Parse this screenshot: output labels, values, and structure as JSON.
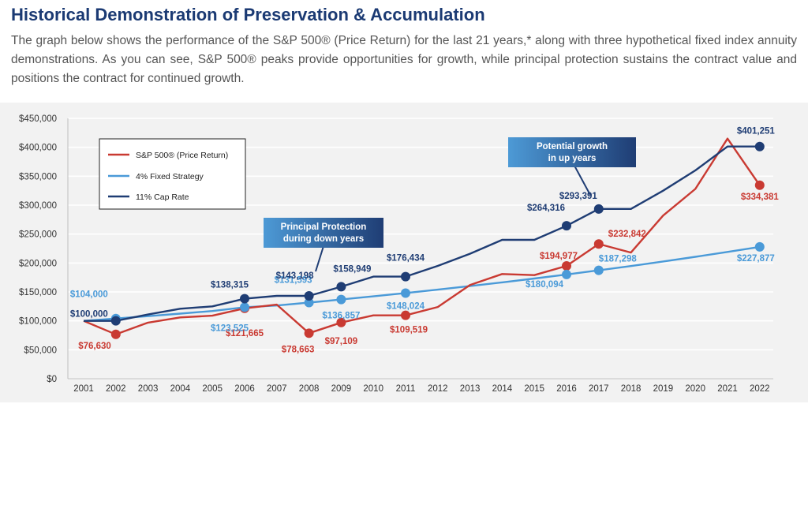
{
  "title": "Historical Demonstration of Preservation & Accumulation",
  "intro": "The graph below shows the performance of the S&P 500® (Price Return) for the last 21 years,* along with three hypothetical fixed index annuity demonstrations. As you can see, S&P 500® peaks provide opportunities for growth, while principal protection sustains the contract value and positions the contract for continued growth.",
  "colors": {
    "sp500": "#c93a32",
    "fixed": "#4a9ad8",
    "cap": "#1f3d74",
    "background": "#f2f2f2"
  },
  "chart_data": {
    "type": "line",
    "x": [
      2001,
      2002,
      2003,
      2004,
      2005,
      2006,
      2007,
      2008,
      2009,
      2010,
      2011,
      2012,
      2013,
      2014,
      2015,
      2016,
      2017,
      2018,
      2019,
      2020,
      2021,
      2022
    ],
    "ylim": [
      0,
      450000
    ],
    "yticks": [
      "$0",
      "$50,000",
      "$100,000",
      "$150,000",
      "$200,000",
      "$250,000",
      "$300,000",
      "$350,000",
      "$400,000",
      "$450,000"
    ],
    "grid": true,
    "legend_position": "top-left",
    "series": [
      {
        "name": "S&P 500® (Price Return)",
        "color": "#c93a32",
        "values": [
          100000,
          76630,
          97000,
          106000,
          109000,
          121665,
          128000,
          78663,
          97109,
          109519,
          109519,
          124000,
          162000,
          181000,
          179000,
          194977,
          232842,
          218000,
          282000,
          328000,
          415000,
          334381
        ]
      },
      {
        "name": "4% Fixed Strategy",
        "color": "#4a9ad8",
        "values": [
          100000,
          104000,
          108160,
          112486,
          116986,
          123525,
          126521,
          131593,
          136857,
          142331,
          148024,
          153945,
          160103,
          166507,
          173168,
          180094,
          187298,
          194790,
          202582,
          210685,
          219112,
          227877
        ]
      },
      {
        "name": "11% Cap Rate",
        "color": "#1f3d74",
        "values": [
          100000,
          100000,
          111000,
          121000,
          125000,
          138315,
          143198,
          143198,
          158949,
          176434,
          176434,
          195000,
          216000,
          240000,
          240000,
          264316,
          293391,
          293391,
          325000,
          360000,
          401251,
          401251
        ]
      }
    ],
    "data_labels": [
      {
        "series": 0,
        "index": 1,
        "text": "$76,630"
      },
      {
        "series": 0,
        "index": 5,
        "text": "$121,665"
      },
      {
        "series": 0,
        "index": 7,
        "text": "$78,663"
      },
      {
        "series": 0,
        "index": 8,
        "text": "$97,109"
      },
      {
        "series": 0,
        "index": 10,
        "text": "$109,519"
      },
      {
        "series": 0,
        "index": 15,
        "text": "$194,977"
      },
      {
        "series": 0,
        "index": 16,
        "text": "$232,842"
      },
      {
        "series": 0,
        "index": 21,
        "text": "$334,381"
      },
      {
        "series": 1,
        "index": 1,
        "text": "$104,000"
      },
      {
        "series": 1,
        "index": 5,
        "text": "$123,525"
      },
      {
        "series": 1,
        "index": 7,
        "text": "$131,593"
      },
      {
        "series": 1,
        "index": 8,
        "text": "$136,857"
      },
      {
        "series": 1,
        "index": 10,
        "text": "$148,024"
      },
      {
        "series": 1,
        "index": 15,
        "text": "$180,094"
      },
      {
        "series": 1,
        "index": 16,
        "text": "$187,298"
      },
      {
        "series": 1,
        "index": 21,
        "text": "$227,877"
      },
      {
        "series": 2,
        "index": 1,
        "text": "$100,000"
      },
      {
        "series": 2,
        "index": 5,
        "text": "$138,315"
      },
      {
        "series": 2,
        "index": 7,
        "text": "$143,198"
      },
      {
        "series": 2,
        "index": 8,
        "text": "$158,949"
      },
      {
        "series": 2,
        "index": 10,
        "text": "$176,434"
      },
      {
        "series": 2,
        "index": 15,
        "text": "$264,316"
      },
      {
        "series": 2,
        "index": 16,
        "text": "$293,391"
      },
      {
        "series": 2,
        "index": 21,
        "text": "$401,251"
      }
    ],
    "annotations": [
      {
        "lines": [
          "Principal Protection",
          "during down years"
        ],
        "points_to": {
          "series": 2,
          "index": 7
        }
      },
      {
        "lines": [
          "Potential growth",
          "in up years"
        ],
        "points_to": {
          "series": 2,
          "index": 16
        }
      }
    ]
  }
}
